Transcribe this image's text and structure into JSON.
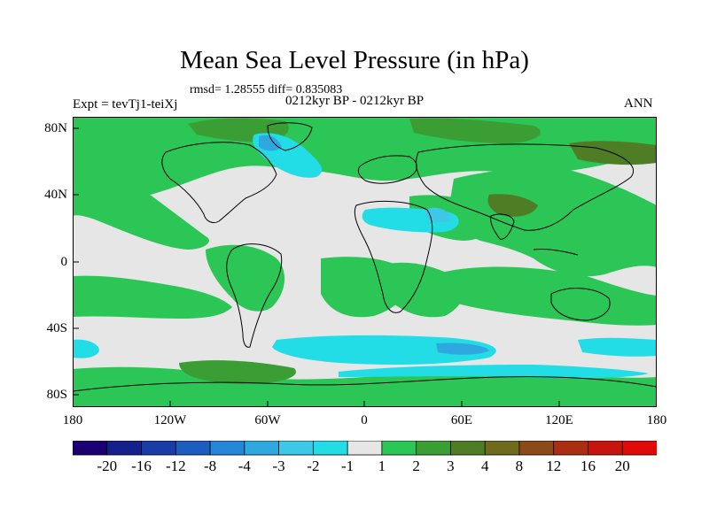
{
  "title": "Mean Sea Level Pressure (in hPa)",
  "stats": "rmsd= 1.28555  diff= 0.835083",
  "experiment": "Expt = tevTj1-teiXj",
  "period": "0212kyr BP - 0212kyr BP",
  "season": "ANN",
  "lat_labels": [
    "80N",
    "40N",
    "0",
    "40S",
    "80S"
  ],
  "lon_labels": [
    "180",
    "120W",
    "60W",
    "0",
    "60E",
    "120E",
    "180"
  ],
  "colorbar": {
    "labels": [
      "-20",
      "-16",
      "-12",
      "-8",
      "-4",
      "-3",
      "-2",
      "-1",
      "1",
      "2",
      "3",
      "4",
      "8",
      "12",
      "16",
      "20"
    ],
    "colors": [
      "#1a0070",
      "#14208c",
      "#1a3ca6",
      "#1f5cbf",
      "#2585d6",
      "#2fa8e0",
      "#3cc8e6",
      "#22dde6",
      "#e6e6e6",
      "#2cc657",
      "#3a9e35",
      "#4f7d26",
      "#6e6a1e",
      "#8c4a18",
      "#ab2e12",
      "#c8140e",
      "#e00a08"
    ]
  },
  "colors": {
    "neutral": "#e6e6e6",
    "green": "#2cc657",
    "dark_green": "#3a9e35",
    "olive": "#4f7d26",
    "brown": "#6e6a1e",
    "cyan": "#22dde6",
    "light_blue": "#3cc8e6",
    "blue": "#2fa8e0"
  }
}
